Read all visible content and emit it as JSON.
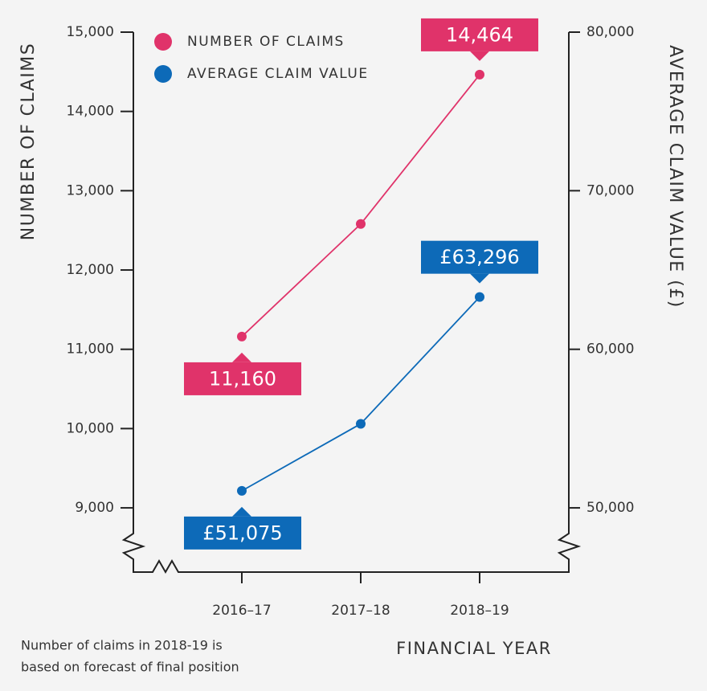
{
  "chart_data": {
    "type": "line",
    "categories": [
      "2016–17",
      "2017–18",
      "2018–19"
    ],
    "series": [
      {
        "name": "NUMBER OF CLAIMS",
        "color": "#e0336a",
        "values": [
          11160,
          12580,
          14464
        ],
        "value_labels": [
          "11,160",
          null,
          "14,464"
        ]
      },
      {
        "name": "AVERAGE CLAIM VALUE",
        "color": "#0d6ab8",
        "axis": "y2",
        "values": [
          51075,
          55300,
          63296
        ],
        "value_labels": [
          "£51,075",
          null,
          "£63,296"
        ]
      }
    ],
    "ylim": [
      8190,
      15000
    ],
    "yticks": [
      {
        "value": 9000,
        "label": "9,000"
      },
      {
        "value": 10000,
        "label": "10,000"
      },
      {
        "value": 11000,
        "label": "11,000"
      },
      {
        "value": 12000,
        "label": "12,000"
      },
      {
        "value": 13000,
        "label": "13,000"
      },
      {
        "value": 14000,
        "label": "14,000"
      },
      {
        "value": 15000,
        "label": "15,000"
      }
    ],
    "y2lim": [
      45950,
      80000
    ],
    "y2ticks": [
      {
        "value": 50000,
        "label": "50,000"
      },
      {
        "value": 60000,
        "label": "60,000"
      },
      {
        "value": 70000,
        "label": "70,000"
      },
      {
        "value": 80000,
        "label": "80,000"
      }
    ],
    "ylabel": "NUMBER OF CLAIMS",
    "y2label": "AVERAGE CLAIM VALUE (£)",
    "xlabel": "FINANCIAL YEAR",
    "note": [
      "Number of claims in 2018-19 is",
      "based on forecast of final position"
    ]
  }
}
